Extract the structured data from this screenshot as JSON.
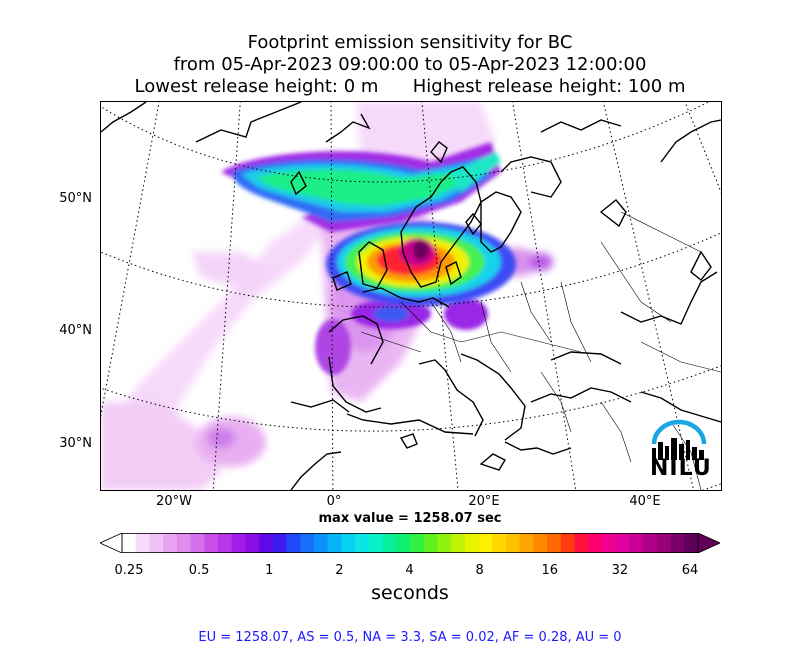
{
  "title": {
    "line1": "Footprint emission sensitivity for BC",
    "line2": "from 05-Apr-2023 09:00:00 to 05-Apr-2023 12:00:00",
    "line3": "Lowest release height: 0 m      Highest release height: 100 m"
  },
  "map": {
    "lat_labels": [
      "50°N",
      "40°N",
      "30°N"
    ],
    "lon_labels": [
      "20°W",
      "0°",
      "20°E",
      "40°E"
    ]
  },
  "max_value": "max value = 1258.07 sec",
  "colorbar": {
    "tick_labels": [
      "0.25",
      "0.5",
      "1",
      "2",
      "4",
      "8",
      "16",
      "32",
      "64"
    ],
    "units": "seconds",
    "colors": [
      "#ffffff",
      "#f6dcfa",
      "#f0c0f6",
      "#e8a6f2",
      "#df8cee",
      "#d56fea",
      "#c84fe6",
      "#b936e6",
      "#a21ee6",
      "#8a0ee6",
      "#5e0ae8",
      "#3a1cf0",
      "#2048f8",
      "#1670fa",
      "#0e92fa",
      "#08b2f6",
      "#08d0f0",
      "#0ae6e6",
      "#08f0c8",
      "#06f09a",
      "#10f070",
      "#30f040",
      "#60f020",
      "#90f010",
      "#c0f208",
      "#e8f400",
      "#fff000",
      "#ffd800",
      "#ffc000",
      "#ffa400",
      "#ff8800",
      "#ff6a00",
      "#ff3c10",
      "#ff1040",
      "#ff0070",
      "#f00090",
      "#e000a0",
      "#c80098",
      "#b00088",
      "#960078",
      "#7a0068",
      "#600058"
    ]
  },
  "logo_text": "NILU",
  "footer": "EU = 1258.07,  AS = 0.5,  NA = 3.3,  SA = 0.02,  AF = 0.28,  AU = 0"
}
